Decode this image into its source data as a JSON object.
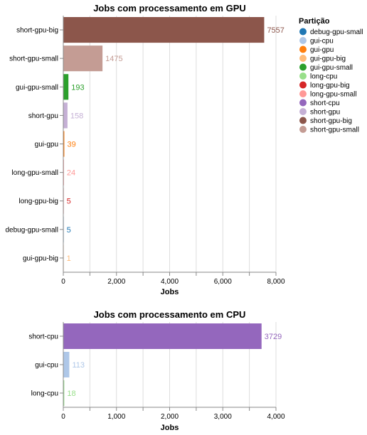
{
  "legend": {
    "title": "Partição",
    "items": [
      {
        "label": "debug-gpu-small",
        "color": "#1f77b4"
      },
      {
        "label": "gui-cpu",
        "color": "#aec7e8"
      },
      {
        "label": "gui-gpu",
        "color": "#ff7f0e"
      },
      {
        "label": "gui-gpu-big",
        "color": "#ffbb78"
      },
      {
        "label": "gui-gpu-small",
        "color": "#2ca02c"
      },
      {
        "label": "long-cpu",
        "color": "#98df8a"
      },
      {
        "label": "long-gpu-big",
        "color": "#d62728"
      },
      {
        "label": "long-gpu-small",
        "color": "#ff9896"
      },
      {
        "label": "short-cpu",
        "color": "#9467bd"
      },
      {
        "label": "short-gpu",
        "color": "#c5b0d5"
      },
      {
        "label": "short-gpu-big",
        "color": "#8c564b"
      },
      {
        "label": "short-gpu-small",
        "color": "#c49c94"
      }
    ]
  },
  "chart_data": [
    {
      "type": "bar",
      "orientation": "horizontal",
      "title": "Jobs com processamento em GPU",
      "xlabel": "Jobs",
      "ylabel": "",
      "xlim": [
        0,
        8000
      ],
      "xticks": [
        "0",
        "2,000",
        "4,000",
        "6,000",
        "8,000"
      ],
      "xtick_values": [
        0,
        2000,
        4000,
        6000,
        8000
      ],
      "grid": true,
      "categories": [
        "short-gpu-big",
        "short-gpu-small",
        "gui-gpu-small",
        "short-gpu",
        "gui-gpu",
        "long-gpu-small",
        "long-gpu-big",
        "debug-gpu-small",
        "gui-gpu-big"
      ],
      "values": [
        7557,
        1475,
        193,
        158,
        39,
        24,
        5,
        5,
        1
      ]
    },
    {
      "type": "bar",
      "orientation": "horizontal",
      "title": "Jobs com processamento em CPU",
      "xlabel": "Jobs",
      "ylabel": "",
      "xlim": [
        0,
        4000
      ],
      "xticks": [
        "0",
        "1,000",
        "2,000",
        "3,000",
        "4,000"
      ],
      "xtick_values": [
        0,
        1000,
        2000,
        3000,
        4000
      ],
      "grid": true,
      "categories": [
        "short-cpu",
        "gui-cpu",
        "long-cpu"
      ],
      "values": [
        3729,
        113,
        18
      ]
    }
  ]
}
